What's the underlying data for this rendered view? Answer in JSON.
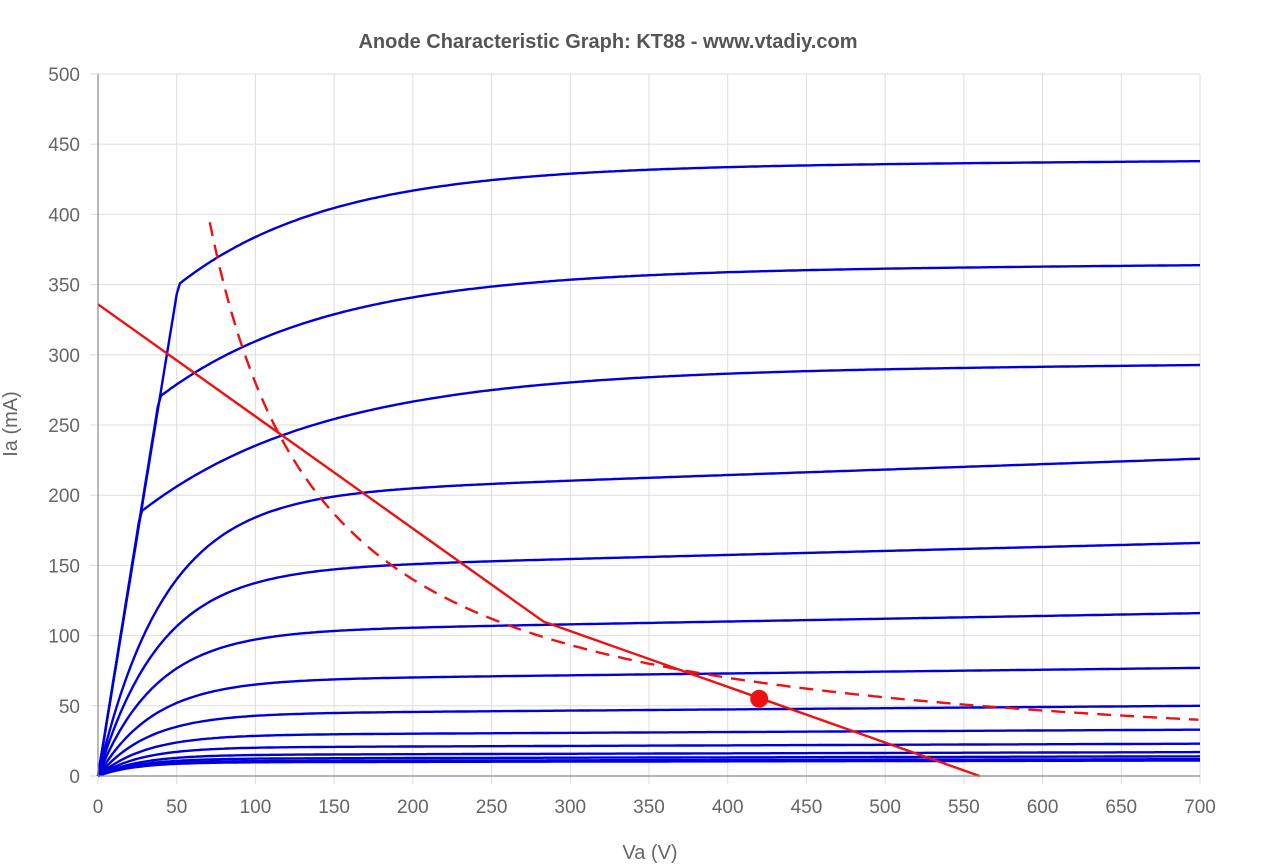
{
  "chart_data": {
    "type": "line",
    "title": "Anode Characteristic Graph: KT88 - www.vtadiy.com",
    "xlabel": "Va (V)",
    "ylabel": "Ia (mA)",
    "xlim": [
      0,
      700
    ],
    "ylim": [
      0,
      500
    ],
    "xticks": [
      0,
      50,
      100,
      150,
      200,
      250,
      300,
      350,
      400,
      450,
      500,
      550,
      600,
      650,
      700
    ],
    "yticks": [
      0,
      50,
      100,
      150,
      200,
      250,
      300,
      350,
      400,
      450,
      500
    ],
    "grid": true,
    "colors": {
      "curves": "#0000dd",
      "load_line": "#ee1111",
      "dissipation": "#ee1111",
      "grid": "#dddddd",
      "axis": "#888888"
    },
    "plate_curves": [
      {
        "knee": [
          51,
          350
        ],
        "end": 438,
        "sharpness": 1.2
      },
      {
        "knee": [
          39,
          270
        ],
        "end": 364,
        "sharpness": 1.2
      },
      {
        "knee": [
          27,
          188
        ],
        "end": 293,
        "sharpness": 1.3
      },
      {
        "knee": [
          0,
          0
        ],
        "end": 226,
        "sharpness": 1.4
      },
      {
        "knee": [
          0,
          0
        ],
        "end": 166,
        "sharpness": 1.6
      },
      {
        "knee": [
          0,
          0
        ],
        "end": 116,
        "sharpness": 1.8
      },
      {
        "knee": [
          0,
          0
        ],
        "end": 77,
        "sharpness": 2.0
      },
      {
        "knee": [
          0,
          0
        ],
        "end": 50,
        "sharpness": 2.3
      },
      {
        "knee": [
          0,
          0
        ],
        "end": 33,
        "sharpness": 2.6
      },
      {
        "knee": [
          0,
          0
        ],
        "end": 23,
        "sharpness": 3.0
      },
      {
        "knee": [
          0,
          0
        ],
        "end": 17,
        "sharpness": 3.3
      },
      {
        "knee": [
          0,
          0
        ],
        "end": 14,
        "sharpness": 3.6
      },
      {
        "knee": [
          0,
          0
        ],
        "end": 12,
        "sharpness": 3.9
      },
      {
        "knee": [
          0,
          0
        ],
        "end": 11,
        "sharpness": 4.2
      }
    ],
    "load_line": {
      "points": [
        [
          0,
          336
        ],
        [
          283,
          110
        ],
        [
          560,
          0
        ]
      ]
    },
    "dissipation_curve": {
      "watts": 28,
      "va_range": [
        71,
        700
      ]
    },
    "operating_point": [
      420,
      55
    ]
  }
}
